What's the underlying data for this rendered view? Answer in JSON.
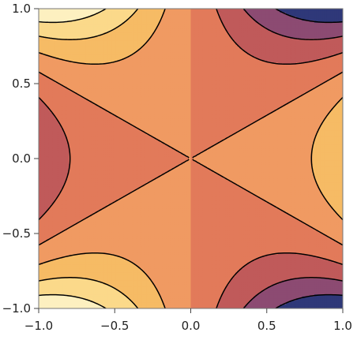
{
  "chart_data": {
    "type": "contour",
    "title": "",
    "xlabel": "",
    "ylabel": "",
    "function": "x^3 - 3*x*y^2",
    "xlim": [
      -1,
      1
    ],
    "ylim": [
      -1,
      1
    ],
    "x_ticks": [
      -1.0,
      -0.5,
      0.0,
      0.5,
      1.0
    ],
    "y_ticks": [
      -1.0,
      -0.5,
      0.0,
      0.5,
      1.0
    ],
    "x_tick_labels": [
      "−1.0",
      "−0.5",
      "0.0",
      "0.5",
      "1.0"
    ],
    "y_tick_labels": [
      "−1.0",
      "−0.5",
      "0.0",
      "0.5",
      "1.0"
    ],
    "contour_levels": [
      -1.5,
      -1.0,
      -0.5,
      0.0,
      0.5,
      1.0,
      1.5
    ],
    "fill_colors": [
      "#2f3879",
      "#8c4b72",
      "#c05a5a",
      "#e27a5a",
      "#f09a62",
      "#f6bb65",
      "#fbd98a",
      "#fdf0c0"
    ],
    "line_style": "dashed",
    "grid": false,
    "legend": "none"
  }
}
